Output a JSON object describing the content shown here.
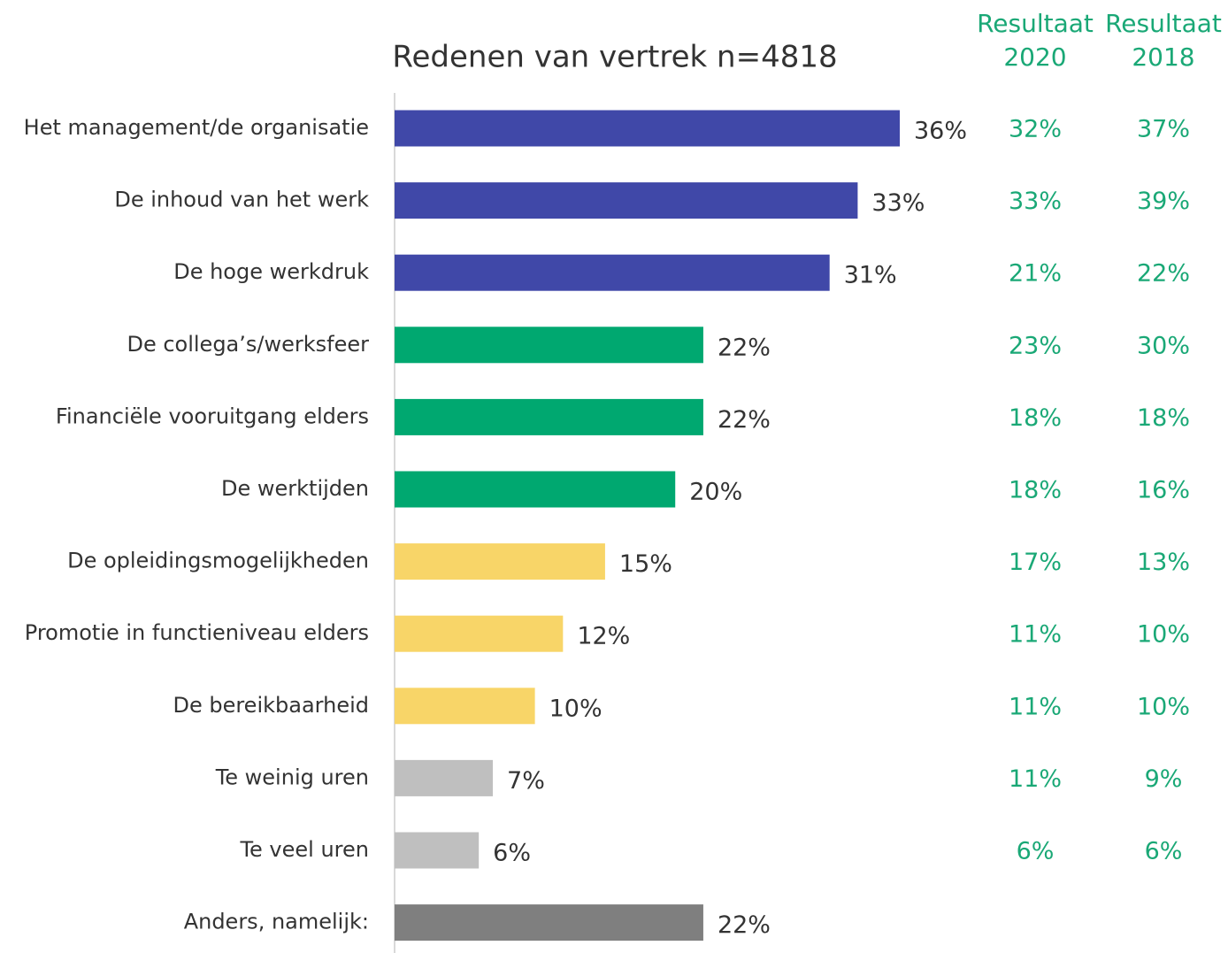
{
  "chart_data": {
    "type": "bar",
    "orientation": "horizontal",
    "title": "Redenen van vertrek n=4818",
    "categories": [
      "Het management/de organisatie",
      "De inhoud van het werk",
      "De hoge werkdruk",
      "De collega’s/werksfeer",
      "Financiële vooruitgang elders",
      "De werktijden",
      "De opleidingsmogelijkheden",
      "Promotie in functieniveau elders",
      "De bereikbaarheid",
      "Te weinig uren",
      "Te veel uren",
      "Anders, namelijk:"
    ],
    "values": [
      36,
      33,
      31,
      22,
      22,
      20,
      15,
      12,
      10,
      7,
      6,
      22
    ],
    "value_labels": [
      "36%",
      "33%",
      "31%",
      "22%",
      "22%",
      "20%",
      "15%",
      "12%",
      "10%",
      "7%",
      "6%",
      "22%"
    ],
    "colors": [
      "#4048a8",
      "#4048a8",
      "#4048a8",
      "#00a870",
      "#00a870",
      "#00a870",
      "#f8d568",
      "#f8d568",
      "#f8d568",
      "#bfbfbf",
      "#bfbfbf",
      "#7f7f7f"
    ],
    "comparison": [
      {
        "label": "Resultaat",
        "year": "2020",
        "values": [
          32,
          33,
          21,
          23,
          18,
          18,
          17,
          11,
          11,
          11,
          6,
          null
        ],
        "value_labels": [
          "32%",
          "33%",
          "21%",
          "23%",
          "18%",
          "18%",
          "17%",
          "11%",
          "11%",
          "11%",
          "6%",
          null
        ]
      },
      {
        "label": "Resultaat",
        "year": "2018",
        "values": [
          37,
          39,
          22,
          30,
          18,
          16,
          13,
          10,
          10,
          9,
          6,
          null
        ],
        "value_labels": [
          "37%",
          "39%",
          "22%",
          "30%",
          "18%",
          "16%",
          "13%",
          "10%",
          "10%",
          "9%",
          "6%",
          null
        ]
      }
    ]
  }
}
